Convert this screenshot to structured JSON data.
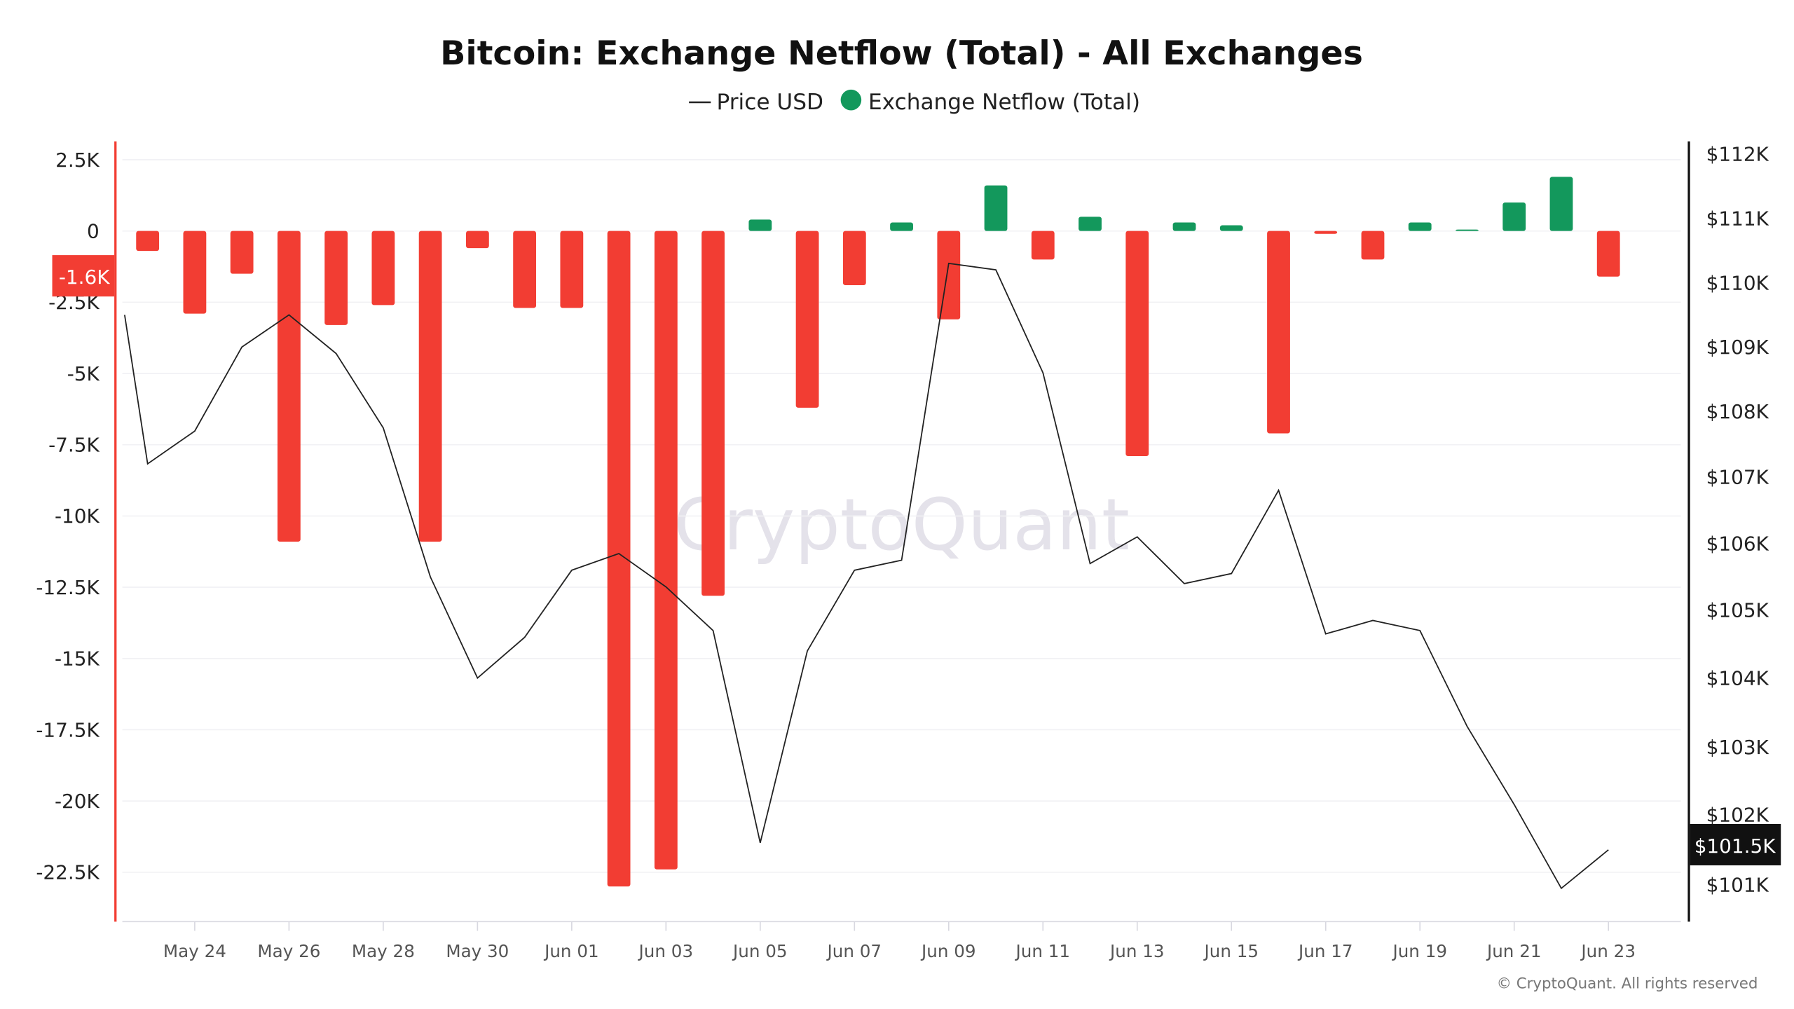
{
  "chart_data": {
    "type": "bar+line",
    "title": "Bitcoin: Exchange Netflow (Total) - All Exchanges",
    "legend": [
      {
        "name": "Price USD",
        "marker": "line",
        "color": "#222222"
      },
      {
        "name": "Exchange Netflow (Total)",
        "marker": "dot",
        "color": "#13985c"
      }
    ],
    "legend_placement": "top-center",
    "watermark": "CryptoQuant",
    "copyright": "© CryptoQuant. All rights reserved",
    "colors": {
      "positive": "#13985c",
      "negative": "#f23d33",
      "price_line": "#222222",
      "left_axis": "#f23d33",
      "right_axis": "#111111"
    },
    "grid": true,
    "left_axis": {
      "ticks": [
        "2.5K",
        "0",
        "-2.5K",
        "-5K",
        "-7.5K",
        "-10K",
        "-12.5K",
        "-15K",
        "-17.5K",
        "-20K",
        "-22.5K"
      ],
      "tick_values": [
        2500,
        0,
        -2500,
        -5000,
        -7500,
        -10000,
        -12500,
        -15000,
        -17500,
        -20000,
        -22500
      ],
      "range": [
        -24000,
        3000
      ],
      "current_label": "-1.6K"
    },
    "right_axis": {
      "ticks": [
        "$112K",
        "$111K",
        "$110K",
        "$109K",
        "$108K",
        "$107K",
        "$106K",
        "$105K",
        "$104K",
        "$103K",
        "$102K",
        "$101K"
      ],
      "tick_values": [
        112000,
        111000,
        110000,
        109000,
        108000,
        107000,
        106000,
        105000,
        104000,
        103000,
        102000,
        101000
      ],
      "current_label": "$101.5K"
    },
    "x_ticks": [
      "May 24",
      "May 26",
      "May 28",
      "May 30",
      "Jun 01",
      "Jun 03",
      "Jun 05",
      "Jun 07",
      "Jun 09",
      "Jun 11",
      "Jun 13",
      "Jun 15",
      "Jun 17",
      "Jun 19",
      "Jun 21",
      "Jun 23"
    ],
    "netflow": {
      "dates": [
        "May 23",
        "May 24",
        "May 25",
        "May 26",
        "May 27",
        "May 28",
        "May 29",
        "May 30",
        "May 31",
        "Jun 01",
        "Jun 02",
        "Jun 03",
        "Jun 04",
        "Jun 05",
        "Jun 06",
        "Jun 07",
        "Jun 08",
        "Jun 09",
        "Jun 10",
        "Jun 11",
        "Jun 12",
        "Jun 13",
        "Jun 14",
        "Jun 15",
        "Jun 16",
        "Jun 17",
        "Jun 18",
        "Jun 19",
        "Jun 20",
        "Jun 21",
        "Jun 22",
        "Jun 23"
      ],
      "values": [
        -700,
        -2900,
        -1500,
        -10900,
        -3300,
        -2600,
        -10900,
        -600,
        -2700,
        -2700,
        -23000,
        -22400,
        -12800,
        400,
        -6200,
        -1900,
        300,
        -3100,
        1600,
        -1000,
        500,
        -7900,
        300,
        200,
        -7100,
        -100,
        -1000,
        300,
        50,
        1000,
        1900,
        -1600
      ]
    },
    "price": {
      "dates": [
        "May 22",
        "May 23",
        "May 24",
        "May 25",
        "May 26",
        "May 27",
        "May 28",
        "May 29",
        "May 30",
        "May 31",
        "Jun 01",
        "Jun 02",
        "Jun 03",
        "Jun 04",
        "Jun 05",
        "Jun 06",
        "Jun 07",
        "Jun 08",
        "Jun 09",
        "Jun 10",
        "Jun 11",
        "Jun 12",
        "Jun 13",
        "Jun 14",
        "Jun 15",
        "Jun 16",
        "Jun 17",
        "Jun 18",
        "Jun 19",
        "Jun 20",
        "Jun 21",
        "Jun 22",
        "Jun 23"
      ],
      "values": [
        109500,
        107200,
        107700,
        109000,
        109500,
        108900,
        107750,
        105500,
        104000,
        104600,
        105600,
        105850,
        105350,
        104700,
        101600,
        104400,
        105600,
        105750,
        110300,
        110200,
        108600,
        105700,
        106100,
        105400,
        105550,
        106800,
        104650,
        104850,
        104700,
        103300,
        102150,
        100950,
        101500
      ]
    }
  }
}
